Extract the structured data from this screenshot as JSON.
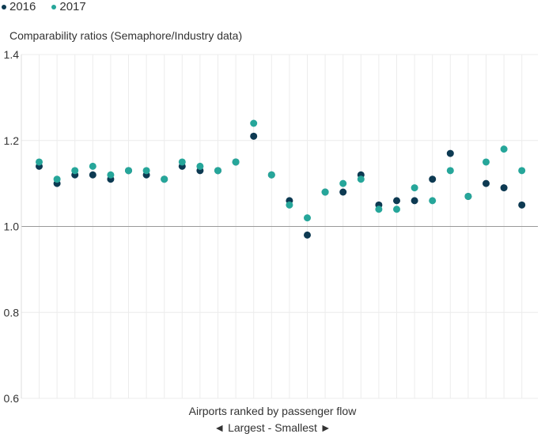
{
  "chart_data": {
    "type": "scatter",
    "ylabel": "Comparability ratios (Semaphore/Industry data)",
    "xlabel": "Airports ranked by passenger flow",
    "xsublabel": "Largest - Smallest",
    "ylim": [
      0.6,
      1.4
    ],
    "yticks": [
      "0.6",
      "0.8",
      "1.0",
      "1.2",
      "1.4"
    ],
    "reference_line": 1.0,
    "grid": true,
    "legend_position": "top-left",
    "series": [
      {
        "name": "2016",
        "color": "#0d3a52",
        "values": [
          1.14,
          1.1,
          1.12,
          1.12,
          1.11,
          1.13,
          1.12,
          1.11,
          1.14,
          1.13,
          1.13,
          1.15,
          1.21,
          1.12,
          1.06,
          0.98,
          1.08,
          1.08,
          1.12,
          1.05,
          1.06,
          1.06,
          1.11,
          1.17,
          1.07,
          1.1,
          1.09,
          1.05
        ]
      },
      {
        "name": "2017",
        "color": "#26a69a",
        "values": [
          1.15,
          1.11,
          1.13,
          1.14,
          1.12,
          1.13,
          1.13,
          1.11,
          1.15,
          1.14,
          1.13,
          1.15,
          1.24,
          1.12,
          1.05,
          1.02,
          1.08,
          1.1,
          1.11,
          1.04,
          1.04,
          1.09,
          1.06,
          1.13,
          1.07,
          1.15,
          1.18,
          1.13
        ]
      }
    ]
  }
}
